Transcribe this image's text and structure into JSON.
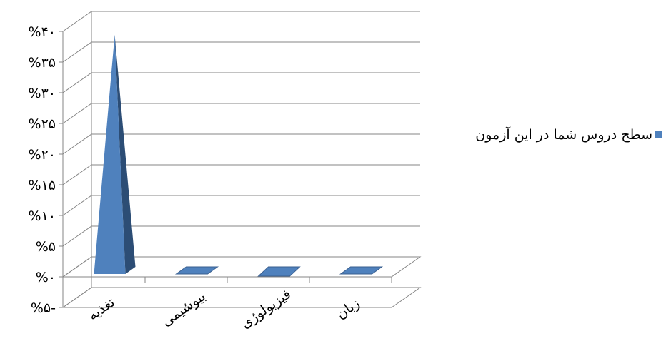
{
  "chart_data": {
    "type": "bar",
    "style": "3d-pyramid",
    "title": "",
    "xlabel": "",
    "ylabel": "",
    "categories": [
      "تغذیه",
      "بیوشیمی",
      "فیزیولوژی",
      "زبان"
    ],
    "series": [
      {
        "name": "سطح دروس شما در این آزمون",
        "values": [
          39,
          0,
          -0.3,
          0
        ],
        "color": "#4f81bd"
      }
    ],
    "ylim": [
      -5,
      40
    ],
    "yticks": [
      -5,
      0,
      5,
      10,
      15,
      20,
      25,
      30,
      35,
      40
    ],
    "ytick_labels": [
      "%۵-",
      "%۰",
      "%۵",
      "%۱۰",
      "%۱۵",
      "%۲۰",
      "%۲۵",
      "%۳۰",
      "%۳۵",
      "%۴۰"
    ],
    "grid": true,
    "legend_position": "right",
    "legend_text": "سطح دروس شما در این آزمون"
  }
}
